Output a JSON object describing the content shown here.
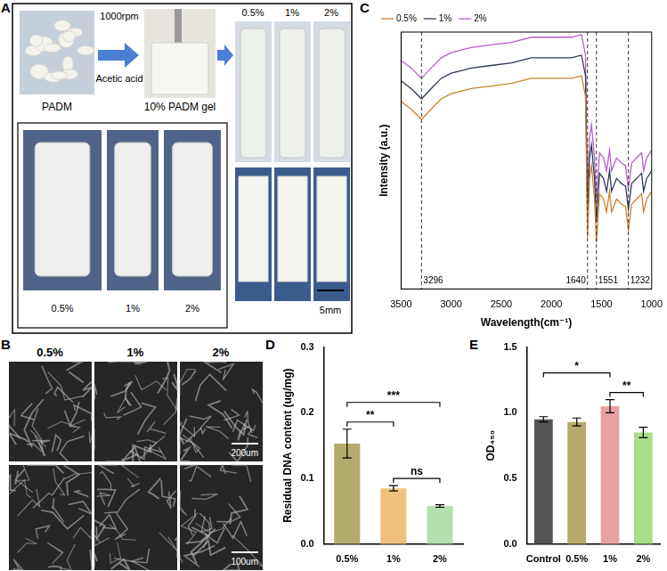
{
  "panels": {
    "A": {
      "label": "A",
      "start": "PADM",
      "speed": "1000rpm",
      "solvent": "Acetic acid",
      "gel": "10% PADM gel",
      "tubes": [
        "0.5%",
        "1%",
        "2%"
      ],
      "inset": [
        "0.5%",
        "1%",
        "2%"
      ],
      "scale_bar": "5mm"
    },
    "B": {
      "label": "B",
      "columns": [
        "0.5%",
        "1%",
        "2%"
      ],
      "scale_bars": [
        "200um",
        "100um"
      ]
    }
  },
  "chart_data": [
    {
      "panel": "C",
      "type": "line",
      "xlabel": "Wavelength(cm⁻¹)",
      "ylabel": "Intensity (a.u.)",
      "x": [
        3500,
        3400,
        3296,
        3200,
        3100,
        3000,
        2900,
        2800,
        2600,
        2400,
        2200,
        2000,
        1800,
        1700,
        1660,
        1640,
        1620,
        1600,
        1570,
        1551,
        1520,
        1480,
        1450,
        1420,
        1400,
        1350,
        1300,
        1260,
        1232,
        1200,
        1150,
        1100,
        1080,
        1050,
        1000
      ],
      "series": [
        {
          "name": "0.5%",
          "color": "#c8832e",
          "values": [
            73,
            70,
            66,
            70,
            74,
            76,
            77,
            78,
            79,
            80,
            82,
            82,
            82,
            83,
            75,
            20,
            43,
            48,
            35,
            18,
            37,
            35,
            30,
            38,
            30,
            35,
            33,
            32,
            23,
            33,
            35,
            37,
            30,
            35,
            38
          ]
        },
        {
          "name": "1%",
          "color": "#2c3a58",
          "values": [
            81,
            78,
            74,
            78,
            82,
            84,
            85,
            86,
            87,
            88,
            90,
            90,
            90,
            91,
            83,
            28,
            51,
            56,
            43,
            26,
            45,
            43,
            38,
            46,
            38,
            43,
            41,
            40,
            31,
            41,
            43,
            45,
            38,
            43,
            46
          ]
        },
        {
          "name": "2%",
          "color": "#b65fc8",
          "values": [
            89,
            86,
            82,
            86,
            90,
            92,
            93,
            94,
            95,
            96,
            98,
            98,
            98,
            99,
            91,
            36,
            59,
            64,
            51,
            34,
            53,
            51,
            46,
            54,
            46,
            51,
            49,
            48,
            39,
            49,
            51,
            53,
            46,
            51,
            54
          ]
        }
      ],
      "xlim": [
        3500,
        1000
      ],
      "xticks": [
        3500,
        3000,
        2500,
        2000,
        1500,
        1000
      ],
      "ylim": [
        0,
        100
      ],
      "tick_labels": "x",
      "grid": false,
      "legend": "upper left",
      "vlines": [
        3296,
        1640,
        1551,
        1232
      ]
    },
    {
      "panel": "D",
      "type": "bar",
      "ylabel": "Residual DNA content (ug/mg)",
      "categories": [
        "0.5%",
        "1%",
        "2%"
      ],
      "values": [
        0.153,
        0.085,
        0.058
      ],
      "errors": [
        0.022,
        0.004,
        0.002
      ],
      "colors": [
        "#b5ab6c",
        "#f0c07c",
        "#b4dfae"
      ],
      "ylim": [
        0,
        0.3
      ],
      "yticks": [
        {
          "value": 0,
          "label": "0.0"
        },
        0.1,
        0.2,
        0.3
      ],
      "grid": false,
      "significance": [
        {
          "from": "0.5%",
          "to": "1%",
          "label": "**"
        },
        {
          "from": "0.5%",
          "to": "2%",
          "label": "***"
        },
        {
          "from": "1%",
          "to": "2%",
          "label": "ns"
        }
      ]
    },
    {
      "panel": "E",
      "type": "bar",
      "ylabel": "OD₄₅₀",
      "categories": [
        "Control",
        "0.5%",
        "1%",
        "2%"
      ],
      "values": [
        0.95,
        0.93,
        1.05,
        0.85
      ],
      "errors": [
        0.02,
        0.03,
        0.05,
        0.04
      ],
      "colors": [
        "#555555",
        "#b5ab6c",
        "#e8a2a2",
        "#a6de8a"
      ],
      "ylim": [
        0,
        1.5
      ],
      "yticks": [
        {
          "value": 0,
          "label": "0.0"
        },
        0.5,
        {
          "value": 1,
          "label": "1.0"
        },
        1.5
      ],
      "grid": false,
      "significance": [
        {
          "from": "Control",
          "to": "1%",
          "label": "*"
        },
        {
          "from": "1%",
          "to": "2%",
          "label": "**"
        }
      ]
    }
  ]
}
